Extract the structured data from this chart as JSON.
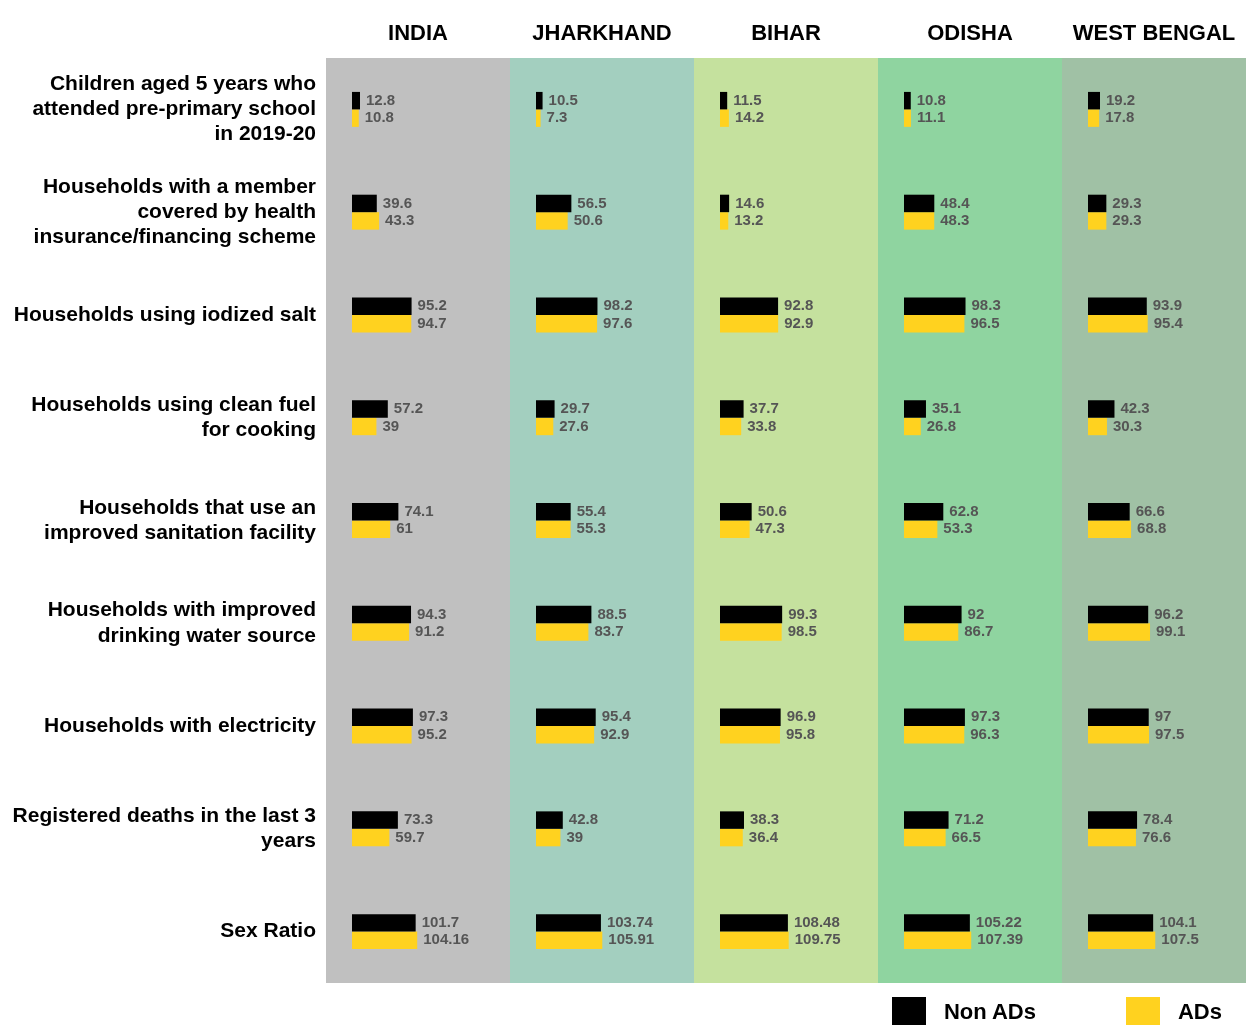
{
  "chart_data": [
    {
      "type": "bar",
      "orientation": "horizontal",
      "title": "INDIA",
      "data_labels": true,
      "tick_labels": "y",
      "legend": "bottom right",
      "categories": [
        "Children aged 5 years who attended pre-primary school in 2019-20",
        "Households with a member covered by health insurance/financing scheme",
        "Households using iodized salt",
        "Households using clean fuel for cooking",
        "Households that use an improved sanitation facility",
        "Households with improved drinking water source",
        "Households with electricity",
        "Registered deaths in the last 3 years",
        "Sex Ratio"
      ],
      "series": [
        {
          "name": "Non ADs",
          "color": "#000000",
          "values": [
            12.8,
            39.6,
            95.2,
            57.2,
            74.1,
            94.3,
            97.3,
            73.3,
            101.7
          ]
        },
        {
          "name": "ADs",
          "color": "#ffd21f",
          "values": [
            10.8,
            43.3,
            94.7,
            39,
            61,
            91.2,
            95.2,
            59.7,
            104.16
          ]
        }
      ]
    },
    {
      "type": "bar",
      "orientation": "horizontal",
      "title": "JHARKHAND",
      "data_labels": true,
      "tick_labels": false,
      "categories": [
        null,
        null,
        null,
        null,
        null,
        null,
        null,
        null,
        null
      ],
      "series": [
        {
          "color": "#000000",
          "values": [
            10.5,
            56.5,
            98.2,
            29.7,
            55.4,
            88.5,
            95.4,
            42.8,
            103.74
          ]
        },
        {
          "color": "#ffd21f",
          "values": [
            7.3,
            50.6,
            97.6,
            27.6,
            55.3,
            83.7,
            92.9,
            39,
            105.91
          ]
        }
      ]
    },
    {
      "type": "bar",
      "orientation": "horizontal",
      "title": "BIHAR",
      "data_labels": true,
      "tick_labels": false,
      "categories": [
        null,
        null,
        null,
        null,
        null,
        null,
        null,
        null,
        null
      ],
      "series": [
        {
          "color": "#000000",
          "values": [
            11.5,
            14.6,
            92.8,
            37.7,
            50.6,
            99.3,
            96.9,
            38.3,
            108.48
          ]
        },
        {
          "color": "#ffd21f",
          "values": [
            14.2,
            13.2,
            92.9,
            33.8,
            47.3,
            98.5,
            95.8,
            36.4,
            109.75
          ]
        }
      ]
    },
    {
      "type": "bar",
      "orientation": "horizontal",
      "title": "ODISHA",
      "data_labels": true,
      "tick_labels": false,
      "categories": [
        null,
        null,
        null,
        null,
        null,
        null,
        null,
        null,
        null
      ],
      "series": [
        {
          "color": "#000000",
          "values": [
            10.8,
            48.4,
            98.3,
            35.1,
            62.8,
            92,
            97.3,
            71.2,
            105.22
          ]
        },
        {
          "color": "#ffd21f",
          "values": [
            11.1,
            48.3,
            96.5,
            26.8,
            53.3,
            86.7,
            96.3,
            66.5,
            107.39
          ]
        }
      ]
    },
    {
      "type": "bar",
      "orientation": "horizontal",
      "title": "WEST BENGAL",
      "data_labels": true,
      "tick_labels": false,
      "categories": [
        null,
        null,
        null,
        null,
        null,
        null,
        null,
        null,
        null
      ],
      "series": [
        {
          "color": "#000000",
          "values": [
            19.2,
            29.3,
            93.9,
            42.3,
            66.6,
            96.2,
            97,
            78.4,
            104.1
          ]
        },
        {
          "color": "#ffd21f",
          "values": [
            17.8,
            29.3,
            95.4,
            30.3,
            68.8,
            99.1,
            97.5,
            76.6,
            107.5
          ]
        }
      ]
    }
  ]
}
